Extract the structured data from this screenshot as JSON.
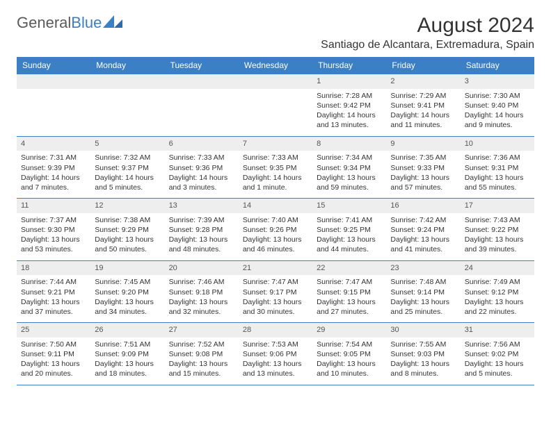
{
  "brand": {
    "name_gray": "General",
    "name_blue": "Blue"
  },
  "header": {
    "month_title": "August 2024",
    "location": "Santiago de Alcantara, Extremadura, Spain"
  },
  "colors": {
    "accent": "#3b7fc4",
    "header_bg": "#3b7fc4",
    "daynum_bg": "#eeeeee",
    "text": "#333333"
  },
  "dayHeaders": [
    "Sunday",
    "Monday",
    "Tuesday",
    "Wednesday",
    "Thursday",
    "Friday",
    "Saturday"
  ],
  "weeks": [
    [
      null,
      null,
      null,
      null,
      {
        "n": "1",
        "sr": "Sunrise: 7:28 AM",
        "ss": "Sunset: 9:42 PM",
        "d1": "Daylight: 14 hours",
        "d2": "and 13 minutes."
      },
      {
        "n": "2",
        "sr": "Sunrise: 7:29 AM",
        "ss": "Sunset: 9:41 PM",
        "d1": "Daylight: 14 hours",
        "d2": "and 11 minutes."
      },
      {
        "n": "3",
        "sr": "Sunrise: 7:30 AM",
        "ss": "Sunset: 9:40 PM",
        "d1": "Daylight: 14 hours",
        "d2": "and 9 minutes."
      }
    ],
    [
      {
        "n": "4",
        "sr": "Sunrise: 7:31 AM",
        "ss": "Sunset: 9:39 PM",
        "d1": "Daylight: 14 hours",
        "d2": "and 7 minutes."
      },
      {
        "n": "5",
        "sr": "Sunrise: 7:32 AM",
        "ss": "Sunset: 9:37 PM",
        "d1": "Daylight: 14 hours",
        "d2": "and 5 minutes."
      },
      {
        "n": "6",
        "sr": "Sunrise: 7:33 AM",
        "ss": "Sunset: 9:36 PM",
        "d1": "Daylight: 14 hours",
        "d2": "and 3 minutes."
      },
      {
        "n": "7",
        "sr": "Sunrise: 7:33 AM",
        "ss": "Sunset: 9:35 PM",
        "d1": "Daylight: 14 hours",
        "d2": "and 1 minute."
      },
      {
        "n": "8",
        "sr": "Sunrise: 7:34 AM",
        "ss": "Sunset: 9:34 PM",
        "d1": "Daylight: 13 hours",
        "d2": "and 59 minutes."
      },
      {
        "n": "9",
        "sr": "Sunrise: 7:35 AM",
        "ss": "Sunset: 9:33 PM",
        "d1": "Daylight: 13 hours",
        "d2": "and 57 minutes."
      },
      {
        "n": "10",
        "sr": "Sunrise: 7:36 AM",
        "ss": "Sunset: 9:31 PM",
        "d1": "Daylight: 13 hours",
        "d2": "and 55 minutes."
      }
    ],
    [
      {
        "n": "11",
        "sr": "Sunrise: 7:37 AM",
        "ss": "Sunset: 9:30 PM",
        "d1": "Daylight: 13 hours",
        "d2": "and 53 minutes."
      },
      {
        "n": "12",
        "sr": "Sunrise: 7:38 AM",
        "ss": "Sunset: 9:29 PM",
        "d1": "Daylight: 13 hours",
        "d2": "and 50 minutes."
      },
      {
        "n": "13",
        "sr": "Sunrise: 7:39 AM",
        "ss": "Sunset: 9:28 PM",
        "d1": "Daylight: 13 hours",
        "d2": "and 48 minutes."
      },
      {
        "n": "14",
        "sr": "Sunrise: 7:40 AM",
        "ss": "Sunset: 9:26 PM",
        "d1": "Daylight: 13 hours",
        "d2": "and 46 minutes."
      },
      {
        "n": "15",
        "sr": "Sunrise: 7:41 AM",
        "ss": "Sunset: 9:25 PM",
        "d1": "Daylight: 13 hours",
        "d2": "and 44 minutes."
      },
      {
        "n": "16",
        "sr": "Sunrise: 7:42 AM",
        "ss": "Sunset: 9:24 PM",
        "d1": "Daylight: 13 hours",
        "d2": "and 41 minutes."
      },
      {
        "n": "17",
        "sr": "Sunrise: 7:43 AM",
        "ss": "Sunset: 9:22 PM",
        "d1": "Daylight: 13 hours",
        "d2": "and 39 minutes."
      }
    ],
    [
      {
        "n": "18",
        "sr": "Sunrise: 7:44 AM",
        "ss": "Sunset: 9:21 PM",
        "d1": "Daylight: 13 hours",
        "d2": "and 37 minutes."
      },
      {
        "n": "19",
        "sr": "Sunrise: 7:45 AM",
        "ss": "Sunset: 9:20 PM",
        "d1": "Daylight: 13 hours",
        "d2": "and 34 minutes."
      },
      {
        "n": "20",
        "sr": "Sunrise: 7:46 AM",
        "ss": "Sunset: 9:18 PM",
        "d1": "Daylight: 13 hours",
        "d2": "and 32 minutes."
      },
      {
        "n": "21",
        "sr": "Sunrise: 7:47 AM",
        "ss": "Sunset: 9:17 PM",
        "d1": "Daylight: 13 hours",
        "d2": "and 30 minutes."
      },
      {
        "n": "22",
        "sr": "Sunrise: 7:47 AM",
        "ss": "Sunset: 9:15 PM",
        "d1": "Daylight: 13 hours",
        "d2": "and 27 minutes."
      },
      {
        "n": "23",
        "sr": "Sunrise: 7:48 AM",
        "ss": "Sunset: 9:14 PM",
        "d1": "Daylight: 13 hours",
        "d2": "and 25 minutes."
      },
      {
        "n": "24",
        "sr": "Sunrise: 7:49 AM",
        "ss": "Sunset: 9:12 PM",
        "d1": "Daylight: 13 hours",
        "d2": "and 22 minutes."
      }
    ],
    [
      {
        "n": "25",
        "sr": "Sunrise: 7:50 AM",
        "ss": "Sunset: 9:11 PM",
        "d1": "Daylight: 13 hours",
        "d2": "and 20 minutes."
      },
      {
        "n": "26",
        "sr": "Sunrise: 7:51 AM",
        "ss": "Sunset: 9:09 PM",
        "d1": "Daylight: 13 hours",
        "d2": "and 18 minutes."
      },
      {
        "n": "27",
        "sr": "Sunrise: 7:52 AM",
        "ss": "Sunset: 9:08 PM",
        "d1": "Daylight: 13 hours",
        "d2": "and 15 minutes."
      },
      {
        "n": "28",
        "sr": "Sunrise: 7:53 AM",
        "ss": "Sunset: 9:06 PM",
        "d1": "Daylight: 13 hours",
        "d2": "and 13 minutes."
      },
      {
        "n": "29",
        "sr": "Sunrise: 7:54 AM",
        "ss": "Sunset: 9:05 PM",
        "d1": "Daylight: 13 hours",
        "d2": "and 10 minutes."
      },
      {
        "n": "30",
        "sr": "Sunrise: 7:55 AM",
        "ss": "Sunset: 9:03 PM",
        "d1": "Daylight: 13 hours",
        "d2": "and 8 minutes."
      },
      {
        "n": "31",
        "sr": "Sunrise: 7:56 AM",
        "ss": "Sunset: 9:02 PM",
        "d1": "Daylight: 13 hours",
        "d2": "and 5 minutes."
      }
    ]
  ]
}
